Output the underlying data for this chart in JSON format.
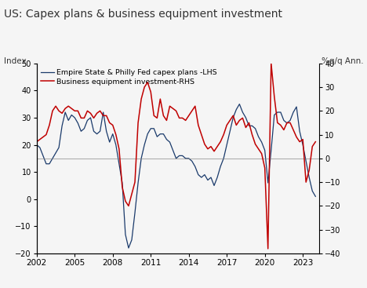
{
  "title": "US: Capex plans & business equipment investment",
  "ylabel_left": "Index",
  "ylabel_right": "%q/q Ann.",
  "ylim_left": [
    -20,
    50
  ],
  "ylim_right": [
    -40,
    40
  ],
  "yticks_left": [
    -20,
    -10,
    0,
    10,
    20,
    30,
    40,
    50
  ],
  "yticks_right": [
    -40,
    -30,
    -20,
    -10,
    0,
    10,
    20,
    30,
    40
  ],
  "xlim": [
    2002.0,
    2024.3
  ],
  "xticks": [
    2002,
    2005,
    2008,
    2011,
    2014,
    2017,
    2020,
    2023
  ],
  "hline_lhs": 15,
  "color_lhs": "#1a3a6b",
  "color_rhs": "#c00000",
  "bg_color": "#f5f5f5",
  "legend": [
    "Empire State & Philly Fed capex plans -LHS",
    "Business equipment investment-RHS"
  ],
  "lhs_data": [
    [
      2002.0,
      20
    ],
    [
      2002.25,
      19
    ],
    [
      2002.5,
      16
    ],
    [
      2002.75,
      13
    ],
    [
      2003.0,
      13
    ],
    [
      2003.25,
      15
    ],
    [
      2003.5,
      17
    ],
    [
      2003.75,
      19
    ],
    [
      2004.0,
      27
    ],
    [
      2004.25,
      32
    ],
    [
      2004.5,
      29
    ],
    [
      2004.75,
      31
    ],
    [
      2005.0,
      30
    ],
    [
      2005.25,
      28
    ],
    [
      2005.5,
      25
    ],
    [
      2005.75,
      26
    ],
    [
      2006.0,
      29
    ],
    [
      2006.25,
      30
    ],
    [
      2006.5,
      25
    ],
    [
      2006.75,
      24
    ],
    [
      2007.0,
      25
    ],
    [
      2007.25,
      32
    ],
    [
      2007.5,
      25
    ],
    [
      2007.75,
      21
    ],
    [
      2008.0,
      24
    ],
    [
      2008.25,
      20
    ],
    [
      2008.5,
      13
    ],
    [
      2008.75,
      6
    ],
    [
      2009.0,
      -13
    ],
    [
      2009.25,
      -18
    ],
    [
      2009.5,
      -15
    ],
    [
      2009.75,
      -5
    ],
    [
      2010.0,
      6
    ],
    [
      2010.25,
      15
    ],
    [
      2010.5,
      20
    ],
    [
      2010.75,
      24
    ],
    [
      2011.0,
      26
    ],
    [
      2011.25,
      26
    ],
    [
      2011.5,
      23
    ],
    [
      2011.75,
      24
    ],
    [
      2012.0,
      24
    ],
    [
      2012.25,
      22
    ],
    [
      2012.5,
      21
    ],
    [
      2012.75,
      18
    ],
    [
      2013.0,
      15
    ],
    [
      2013.25,
      16
    ],
    [
      2013.5,
      16
    ],
    [
      2013.75,
      15
    ],
    [
      2014.0,
      15
    ],
    [
      2014.25,
      14
    ],
    [
      2014.5,
      12
    ],
    [
      2014.75,
      9
    ],
    [
      2015.0,
      8
    ],
    [
      2015.25,
      9
    ],
    [
      2015.5,
      7
    ],
    [
      2015.75,
      8
    ],
    [
      2016.0,
      5
    ],
    [
      2016.25,
      8
    ],
    [
      2016.5,
      12
    ],
    [
      2016.75,
      15
    ],
    [
      2017.0,
      20
    ],
    [
      2017.25,
      25
    ],
    [
      2017.5,
      30
    ],
    [
      2017.75,
      33
    ],
    [
      2018.0,
      35
    ],
    [
      2018.25,
      32
    ],
    [
      2018.5,
      30
    ],
    [
      2018.75,
      27
    ],
    [
      2019.0,
      27
    ],
    [
      2019.25,
      26
    ],
    [
      2019.5,
      23
    ],
    [
      2019.75,
      21
    ],
    [
      2020.0,
      18
    ],
    [
      2020.25,
      6
    ],
    [
      2020.5,
      18
    ],
    [
      2020.75,
      31
    ],
    [
      2021.0,
      32
    ],
    [
      2021.25,
      32
    ],
    [
      2021.5,
      29
    ],
    [
      2021.75,
      28
    ],
    [
      2022.0,
      29
    ],
    [
      2022.25,
      32
    ],
    [
      2022.5,
      34
    ],
    [
      2022.75,
      25
    ],
    [
      2023.0,
      20
    ],
    [
      2023.25,
      14
    ],
    [
      2023.5,
      8
    ],
    [
      2023.75,
      3
    ],
    [
      2024.0,
      1
    ]
  ],
  "rhs_data": [
    [
      2002.0,
      7
    ],
    [
      2002.25,
      8
    ],
    [
      2002.5,
      9
    ],
    [
      2002.75,
      10
    ],
    [
      2003.0,
      14
    ],
    [
      2003.25,
      20
    ],
    [
      2003.5,
      22
    ],
    [
      2003.75,
      20
    ],
    [
      2004.0,
      19
    ],
    [
      2004.25,
      21
    ],
    [
      2004.5,
      22
    ],
    [
      2004.75,
      21
    ],
    [
      2005.0,
      20
    ],
    [
      2005.25,
      20
    ],
    [
      2005.5,
      17
    ],
    [
      2005.75,
      17
    ],
    [
      2006.0,
      20
    ],
    [
      2006.25,
      19
    ],
    [
      2006.5,
      17
    ],
    [
      2006.75,
      19
    ],
    [
      2007.0,
      20
    ],
    [
      2007.25,
      18
    ],
    [
      2007.5,
      18
    ],
    [
      2007.75,
      15
    ],
    [
      2008.0,
      14
    ],
    [
      2008.25,
      10
    ],
    [
      2008.5,
      4
    ],
    [
      2008.75,
      -12
    ],
    [
      2009.0,
      -18
    ],
    [
      2009.25,
      -20
    ],
    [
      2009.5,
      -15
    ],
    [
      2009.75,
      -10
    ],
    [
      2010.0,
      15
    ],
    [
      2010.25,
      25
    ],
    [
      2010.5,
      30
    ],
    [
      2010.75,
      32
    ],
    [
      2011.0,
      28
    ],
    [
      2011.25,
      18
    ],
    [
      2011.5,
      17
    ],
    [
      2011.75,
      25
    ],
    [
      2012.0,
      18
    ],
    [
      2012.25,
      16
    ],
    [
      2012.5,
      22
    ],
    [
      2012.75,
      21
    ],
    [
      2013.0,
      20
    ],
    [
      2013.25,
      17
    ],
    [
      2013.5,
      17
    ],
    [
      2013.75,
      16
    ],
    [
      2014.0,
      18
    ],
    [
      2014.25,
      20
    ],
    [
      2014.5,
      22
    ],
    [
      2014.75,
      14
    ],
    [
      2015.0,
      10
    ],
    [
      2015.25,
      6
    ],
    [
      2015.5,
      4
    ],
    [
      2015.75,
      5
    ],
    [
      2016.0,
      3
    ],
    [
      2016.25,
      5
    ],
    [
      2016.5,
      7
    ],
    [
      2016.75,
      10
    ],
    [
      2017.0,
      14
    ],
    [
      2017.25,
      16
    ],
    [
      2017.5,
      18
    ],
    [
      2017.75,
      14
    ],
    [
      2018.0,
      16
    ],
    [
      2018.25,
      17
    ],
    [
      2018.5,
      13
    ],
    [
      2018.75,
      15
    ],
    [
      2019.0,
      10
    ],
    [
      2019.25,
      6
    ],
    [
      2019.5,
      4
    ],
    [
      2019.75,
      2
    ],
    [
      2020.0,
      -4
    ],
    [
      2020.25,
      -38
    ],
    [
      2020.5,
      40
    ],
    [
      2020.75,
      26
    ],
    [
      2021.0,
      15
    ],
    [
      2021.25,
      14
    ],
    [
      2021.5,
      12
    ],
    [
      2021.75,
      15
    ],
    [
      2022.0,
      15
    ],
    [
      2022.25,
      12
    ],
    [
      2022.5,
      9
    ],
    [
      2022.75,
      7
    ],
    [
      2023.0,
      8
    ],
    [
      2023.25,
      -10
    ],
    [
      2023.5,
      -5
    ],
    [
      2023.75,
      5
    ],
    [
      2024.0,
      7
    ]
  ]
}
